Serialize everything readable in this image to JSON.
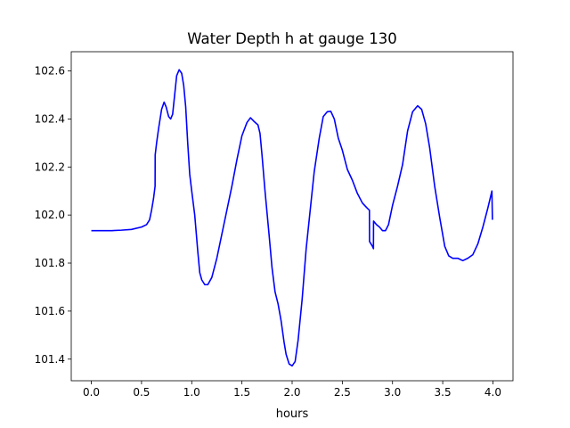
{
  "chart_data": {
    "type": "line",
    "title": "Water Depth h at gauge 130",
    "xlabel": "hours",
    "ylabel": "",
    "xlim": [
      -0.2,
      4.2
    ],
    "ylim": [
      101.31,
      102.68
    ],
    "x_ticks": [
      0.0,
      0.5,
      1.0,
      1.5,
      2.0,
      2.5,
      3.0,
      3.5,
      4.0
    ],
    "x_tick_labels": [
      "0.0",
      "0.5",
      "1.0",
      "1.5",
      "2.0",
      "2.5",
      "3.0",
      "3.5",
      "4.0"
    ],
    "y_ticks": [
      101.4,
      101.6,
      101.8,
      102.0,
      102.2,
      102.4,
      102.6
    ],
    "y_tick_labels": [
      "101.4",
      "101.6",
      "101.8",
      "102.0",
      "102.2",
      "102.4",
      "102.6"
    ],
    "grid": false,
    "series": [
      {
        "color": "#0000ff",
        "points": [
          [
            0.0,
            101.935
          ],
          [
            0.1,
            101.935
          ],
          [
            0.2,
            101.935
          ],
          [
            0.3,
            101.937
          ],
          [
            0.4,
            101.94
          ],
          [
            0.5,
            101.95
          ],
          [
            0.55,
            101.96
          ],
          [
            0.58,
            101.98
          ],
          [
            0.6,
            102.02
          ],
          [
            0.62,
            102.07
          ],
          [
            0.635,
            102.12
          ],
          [
            0.636,
            102.25
          ],
          [
            0.65,
            102.3
          ],
          [
            0.67,
            102.36
          ],
          [
            0.7,
            102.44
          ],
          [
            0.725,
            102.47
          ],
          [
            0.745,
            102.45
          ],
          [
            0.77,
            102.41
          ],
          [
            0.79,
            102.4
          ],
          [
            0.81,
            102.42
          ],
          [
            0.83,
            102.5
          ],
          [
            0.85,
            102.58
          ],
          [
            0.875,
            102.605
          ],
          [
            0.9,
            102.59
          ],
          [
            0.92,
            102.54
          ],
          [
            0.94,
            102.45
          ],
          [
            0.96,
            102.3
          ],
          [
            0.98,
            102.17
          ],
          [
            1.0,
            102.1
          ],
          [
            1.03,
            102.0
          ],
          [
            1.06,
            101.85
          ],
          [
            1.08,
            101.76
          ],
          [
            1.1,
            101.73
          ],
          [
            1.13,
            101.71
          ],
          [
            1.16,
            101.71
          ],
          [
            1.2,
            101.74
          ],
          [
            1.25,
            101.82
          ],
          [
            1.3,
            101.92
          ],
          [
            1.35,
            102.02
          ],
          [
            1.4,
            102.12
          ],
          [
            1.45,
            102.23
          ],
          [
            1.5,
            102.33
          ],
          [
            1.55,
            102.385
          ],
          [
            1.585,
            102.405
          ],
          [
            1.62,
            102.39
          ],
          [
            1.66,
            102.375
          ],
          [
            1.68,
            102.34
          ],
          [
            1.7,
            102.25
          ],
          [
            1.73,
            102.1
          ],
          [
            1.77,
            101.92
          ],
          [
            1.8,
            101.78
          ],
          [
            1.83,
            101.68
          ],
          [
            1.86,
            101.63
          ],
          [
            1.89,
            101.56
          ],
          [
            1.92,
            101.47
          ],
          [
            1.94,
            101.42
          ],
          [
            1.97,
            101.38
          ],
          [
            2.0,
            101.372
          ],
          [
            2.03,
            101.39
          ],
          [
            2.06,
            101.48
          ],
          [
            2.1,
            101.65
          ],
          [
            2.14,
            101.86
          ],
          [
            2.18,
            102.02
          ],
          [
            2.22,
            102.18
          ],
          [
            2.27,
            102.32
          ],
          [
            2.31,
            102.41
          ],
          [
            2.35,
            102.43
          ],
          [
            2.385,
            102.432
          ],
          [
            2.42,
            102.4
          ],
          [
            2.46,
            102.32
          ],
          [
            2.5,
            102.27
          ],
          [
            2.55,
            102.19
          ],
          [
            2.6,
            102.145
          ],
          [
            2.65,
            102.09
          ],
          [
            2.7,
            102.05
          ],
          [
            2.745,
            102.03
          ],
          [
            2.77,
            102.02
          ],
          [
            2.771,
            101.89
          ],
          [
            2.8,
            101.87
          ],
          [
            2.81,
            101.86
          ],
          [
            2.811,
            101.975
          ],
          [
            2.84,
            101.96
          ],
          [
            2.87,
            101.95
          ],
          [
            2.9,
            101.935
          ],
          [
            2.93,
            101.935
          ],
          [
            2.96,
            101.96
          ],
          [
            3.0,
            102.04
          ],
          [
            3.05,
            102.12
          ],
          [
            3.1,
            102.21
          ],
          [
            3.15,
            102.35
          ],
          [
            3.2,
            102.43
          ],
          [
            3.25,
            102.455
          ],
          [
            3.29,
            102.44
          ],
          [
            3.33,
            102.38
          ],
          [
            3.37,
            102.28
          ],
          [
            3.42,
            102.12
          ],
          [
            3.47,
            101.99
          ],
          [
            3.52,
            101.87
          ],
          [
            3.56,
            101.83
          ],
          [
            3.6,
            101.82
          ],
          [
            3.65,
            101.82
          ],
          [
            3.7,
            101.81
          ],
          [
            3.75,
            101.82
          ],
          [
            3.8,
            101.835
          ],
          [
            3.85,
            101.88
          ],
          [
            3.9,
            101.95
          ],
          [
            3.95,
            102.03
          ],
          [
            3.99,
            102.1
          ],
          [
            3.995,
            101.98
          ]
        ]
      }
    ]
  }
}
